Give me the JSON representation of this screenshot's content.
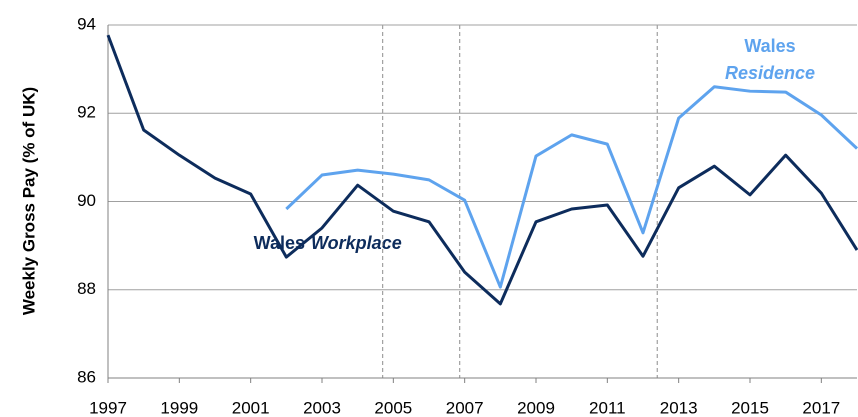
{
  "chart_data": {
    "type": "line",
    "y_label": "Weekly Gross Pay (% of UK)",
    "x": [
      1997,
      1998,
      1999,
      2000,
      2001,
      2002,
      2003,
      2004,
      2005,
      2006,
      2007,
      2008,
      2009,
      2010,
      2011,
      2012,
      2013,
      2014,
      2015,
      2016,
      2017,
      2018
    ],
    "series": [
      {
        "color": "#0d2c5c",
        "values": [
          93.77,
          91.62,
          91.05,
          90.53,
          90.17,
          88.74,
          89.4,
          90.37,
          89.78,
          89.54,
          88.4,
          87.68,
          89.54,
          89.83,
          89.92,
          88.76,
          90.31,
          90.8,
          90.15,
          91.05,
          90.19,
          88.9
        ]
      },
      {
        "color": "#5ea3ee",
        "values": [
          null,
          null,
          null,
          null,
          null,
          89.83,
          90.6,
          90.71,
          90.62,
          90.49,
          90.03,
          88.06,
          91.03,
          91.51,
          91.3,
          89.29,
          91.89,
          92.6,
          92.5,
          92.48,
          91.96,
          91.2
        ]
      }
    ],
    "annotations": {
      "workplace": [
        "Wales",
        "Workplace"
      ],
      "residence": [
        "Wales",
        "Residence"
      ]
    },
    "vlines": [
      2004.7,
      2006.86,
      2012.4
    ],
    "xlim": [
      1997,
      2018
    ],
    "xticks": [
      1997,
      1999,
      2001,
      2003,
      2005,
      2007,
      2009,
      2011,
      2013,
      2015,
      2017
    ],
    "ylim": [
      86,
      94
    ],
    "yticks": [
      86,
      88,
      90,
      92,
      94
    ],
    "grid": true
  }
}
